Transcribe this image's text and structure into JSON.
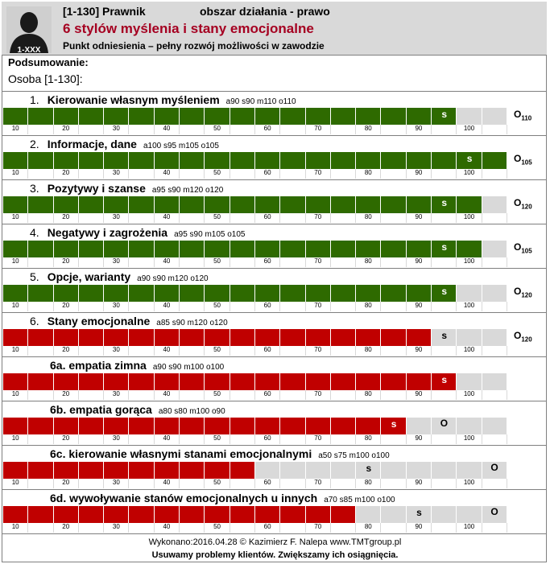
{
  "header": {
    "role": "[1-130] Prawnik",
    "area": "obszar działania - prawo",
    "title": "6 stylów myślenia i stany emocjonalne",
    "subtitle": "Punkt odniesienia – pełny rozwój możliwości w zawodzie",
    "avatar_label": "1-XXX"
  },
  "summary_label": "Podsumowanie:",
  "person_label": "Osoba [1-130]:",
  "tick_labels": [
    "10",
    "20",
    "30",
    "40",
    "50",
    "60",
    "70",
    "80",
    "90",
    "100"
  ],
  "colors": {
    "green": "#2e6a00",
    "red": "#c00000",
    "empty": "#d9d9d9",
    "title": "#a50021"
  },
  "rows": [
    {
      "num": "1.",
      "title": "Kierowanie własnym myśleniem",
      "scores": "a90  s90  m110  o110",
      "color": "green",
      "a": 90,
      "s": 90,
      "o_label": "O",
      "o_sub": "110"
    },
    {
      "num": "2.",
      "title": "Informacje, dane",
      "scores": "a100  s95  m105  o105",
      "color": "green",
      "a": 100,
      "s": 95,
      "o_label": "O",
      "o_sub": "105"
    },
    {
      "num": "3.",
      "title": "Pozytywy i szanse",
      "scores": "a95  s90 m120  o120",
      "color": "green",
      "a": 95,
      "s": 90,
      "o_label": "O",
      "o_sub": "120"
    },
    {
      "num": "4.",
      "title": "Negatywy i zagrożenia",
      "scores": "a95  s90  m105  o105",
      "color": "green",
      "a": 95,
      "s": 90,
      "o_label": "O",
      "o_sub": "105"
    },
    {
      "num": "5.",
      "title": "Opcje, warianty",
      "scores": "a90  s90  m120 o120",
      "color": "green",
      "a": 90,
      "s": 90,
      "o_label": "O",
      "o_sub": "120"
    },
    {
      "num": "6.",
      "title": "Stany emocjonalne",
      "scores": "a85  s90  m120  o120",
      "color": "red",
      "a": 85,
      "s": 90,
      "o_label": "O",
      "o_sub": "120"
    },
    {
      "num": "",
      "title": "6a. empatia zimna",
      "scores": "a90  s90  m100  o100",
      "color": "red",
      "a": 90,
      "s": 90,
      "o_label": "",
      "o_sub": ""
    },
    {
      "num": "",
      "title": "6b. empatia gorąca",
      "scores": "a80  s80  m100 o90",
      "color": "red",
      "a": 80,
      "s": 80,
      "o_label": "O",
      "o_sub": "",
      "o_pos": 90
    },
    {
      "num": "",
      "title": "6c. kierowanie własnymi stanami emocjonalnymi",
      "scores": "a50  s75  m100  o100",
      "color": "red",
      "a": 50,
      "s": 75,
      "o_label": "O",
      "o_sub": "",
      "o_pos": 100
    },
    {
      "num": "",
      "title": "6d. wywoływanie stanów emocjonalnych u innych",
      "scores": "a70  s85  m100  o100",
      "color": "red",
      "a": 70,
      "s": 85,
      "o_label": "O",
      "o_sub": "",
      "o_pos": 100
    }
  ],
  "footer": {
    "line1": "Wykonano:2016.04.28    © Kazimierz F. Nalepa    www.TMTgroup.pl",
    "line2": "Usuwamy problemy klientów. Zwiększamy ich osiągnięcia."
  }
}
